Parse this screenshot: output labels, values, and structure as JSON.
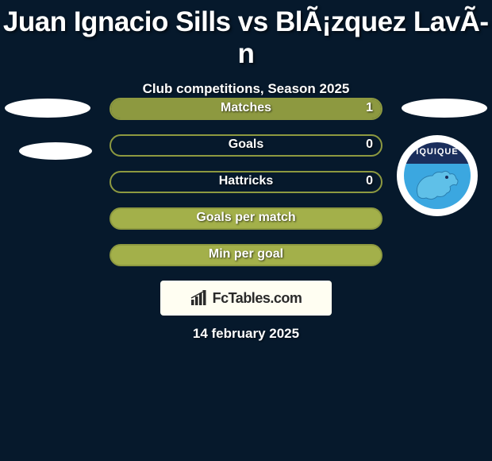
{
  "title": "Juan Ignacio Sills vs BlÃ¡zquez LavÃ­n",
  "subtitle": "Club competitions, Season 2025",
  "date": "14 february 2025",
  "logo_text": "FcTables.com",
  "club_badge_text": "IQUIQUE",
  "colors": {
    "background": "#06192c",
    "bar1_border": "#8d9940",
    "bar1_fill": "#8d9940",
    "bar2_border": "#8d9940",
    "bar3_border": "#8d9940",
    "bar4_border": "#8d9940",
    "bar4_fill": "#a3b04a",
    "bar5_border": "#8d9940",
    "bar5_fill": "#a3b04a",
    "text": "#ffffff",
    "logo_bg": "#fffef2",
    "logo_text": "#2a2a2a"
  },
  "bars": [
    {
      "label": "Matches",
      "left": "",
      "right": "1",
      "fill_side": "right",
      "fill_pct": 100,
      "border_color": "#8d9940",
      "fill_color": "#8d9940"
    },
    {
      "label": "Goals",
      "left": "",
      "right": "0",
      "fill_side": "none",
      "fill_pct": 0,
      "border_color": "#8d9940",
      "fill_color": "#8d9940"
    },
    {
      "label": "Hattricks",
      "left": "",
      "right": "0",
      "fill_side": "none",
      "fill_pct": 0,
      "border_color": "#8d9940",
      "fill_color": "#8d9940"
    },
    {
      "label": "Goals per match",
      "left": "",
      "right": "",
      "fill_side": "full",
      "fill_pct": 100,
      "border_color": "#8d9940",
      "fill_color": "#a3b04a"
    },
    {
      "label": "Min per goal",
      "left": "",
      "right": "",
      "fill_side": "full",
      "fill_pct": 100,
      "border_color": "#8d9940",
      "fill_color": "#a3b04a"
    }
  ]
}
